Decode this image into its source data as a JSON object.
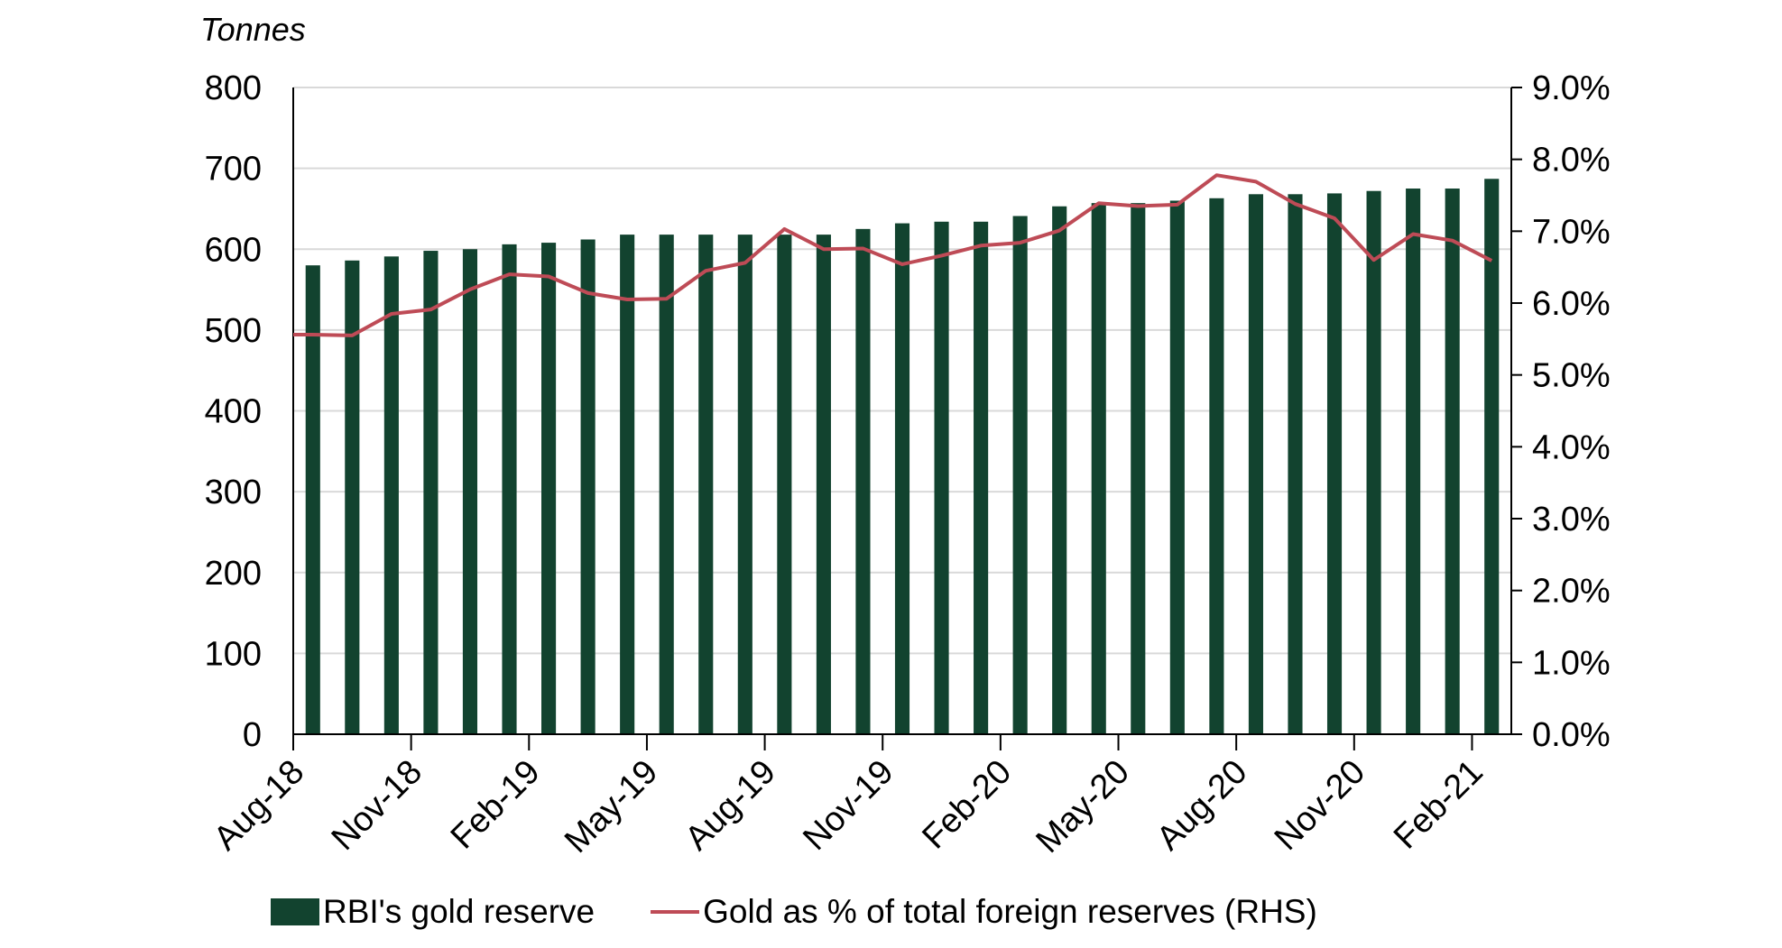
{
  "chart_data": {
    "type": "bar",
    "title": "",
    "left_axis_label": "Tonnes",
    "xlabel": "",
    "ylabel": "Tonnes",
    "ylim": [
      0,
      800
    ],
    "y_ticks": [
      "0",
      "100",
      "200",
      "300",
      "400",
      "500",
      "600",
      "700",
      "800"
    ],
    "y2lim": [
      0,
      9
    ],
    "y2_ticks": [
      "0.0%",
      "1.0%",
      "2.0%",
      "3.0%",
      "4.0%",
      "5.0%",
      "6.0%",
      "7.0%",
      "8.0%",
      "9.0%"
    ],
    "grid": true,
    "legend_position": "bottom",
    "categories": [
      "Aug-18",
      "Sep-18",
      "Oct-18",
      "Nov-18",
      "Dec-18",
      "Jan-19",
      "Feb-19",
      "Mar-19",
      "Apr-19",
      "May-19",
      "Jun-19",
      "Jul-19",
      "Aug-19",
      "Sep-19",
      "Oct-19",
      "Nov-19",
      "Dec-19",
      "Jan-20",
      "Feb-20",
      "Mar-20",
      "Apr-20",
      "May-20",
      "Jun-20",
      "Jul-20",
      "Aug-20",
      "Sep-20",
      "Oct-20",
      "Nov-20",
      "Dec-20",
      "Jan-21",
      "Feb-21"
    ],
    "x_tick_labels": [
      "Aug-18",
      "Nov-18",
      "Feb-19",
      "May-19",
      "Aug-19",
      "Nov-19",
      "Feb-20",
      "May-20",
      "Aug-20",
      "Nov-20",
      "Feb-21"
    ],
    "series": [
      {
        "name": "RBI's gold reserve",
        "type": "bar",
        "axis": "left",
        "color": "#12432F",
        "values": [
          580,
          586,
          591,
          598,
          600,
          606,
          608,
          612,
          618,
          618,
          618,
          618,
          618,
          618,
          625,
          632,
          634,
          634,
          641,
          653,
          657,
          657,
          660,
          663,
          668,
          668,
          669,
          672,
          675,
          675,
          687
        ]
      },
      {
        "name": "Gold as % of total foreign reserves (RHS)",
        "type": "line",
        "axis": "right",
        "unit": "%",
        "color": "#BE4B56",
        "values": [
          5.56,
          5.55,
          5.85,
          5.91,
          6.19,
          6.4,
          6.37,
          6.14,
          6.05,
          6.06,
          6.45,
          6.56,
          7.03,
          6.75,
          6.76,
          6.54,
          6.66,
          6.8,
          6.84,
          7.01,
          7.39,
          7.35,
          7.37,
          7.78,
          7.69,
          7.38,
          7.18,
          6.6,
          6.96,
          6.87,
          6.59
        ]
      }
    ]
  },
  "colors": {
    "gridline": "#D9D9D9",
    "axis": "#000000"
  }
}
